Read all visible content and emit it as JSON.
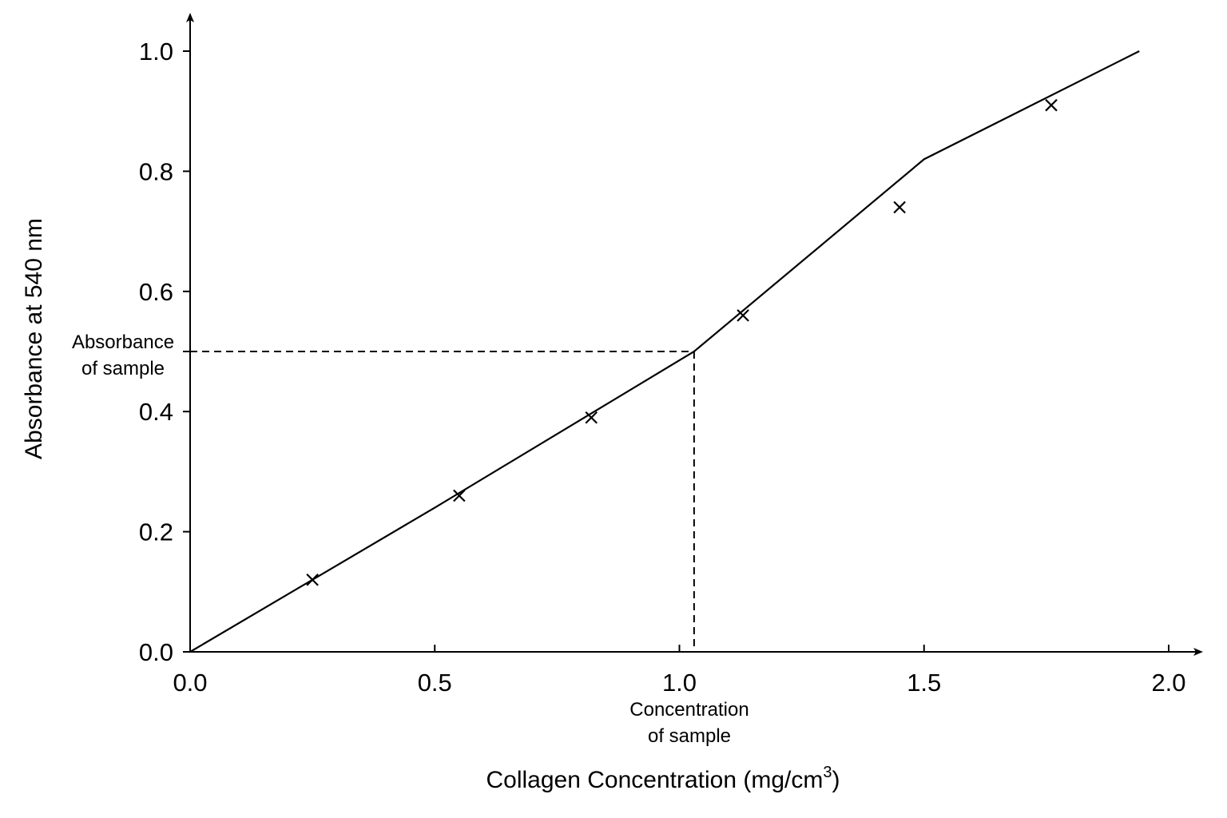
{
  "chart_data": {
    "type": "line",
    "title": "",
    "xlabel": "Collagen Concentration (mg/cm",
    "xlabel_superscript": "3",
    "xlabel_suffix": ")",
    "ylabel": "Absorbance at 540 nm",
    "xlim": [
      0,
      2.0
    ],
    "ylim": [
      0,
      1.0
    ],
    "x_ticks": [
      0.0,
      0.5,
      1.0,
      1.5,
      2.0
    ],
    "x_tick_labels": [
      "0.0",
      "0.5",
      "1.0",
      "1.5",
      "2.0"
    ],
    "y_ticks": [
      0.0,
      0.2,
      0.4,
      0.6,
      0.8,
      1.0
    ],
    "y_tick_labels": [
      "0.0",
      "0.2",
      "0.4",
      "0.6",
      "0.8",
      "1.0"
    ],
    "grid": false,
    "legend": "none",
    "series": [
      {
        "marker": "x",
        "x": [
          0.25,
          0.55,
          0.82,
          1.13,
          1.45,
          1.76
        ],
        "y": [
          0.12,
          0.26,
          0.39,
          0.56,
          0.74,
          0.91
        ]
      }
    ],
    "fit_line": {
      "x": [
        0,
        0.5,
        1.03,
        1.5,
        1.94
      ],
      "y": [
        0,
        0.24,
        0.5,
        0.82,
        1.0
      ]
    },
    "sample": {
      "absorbance": 0.5,
      "concentration": 1.03,
      "absorbance_label": [
        "Absorbance",
        "of sample"
      ],
      "concentration_label": [
        "Concentration",
        "of sample"
      ]
    }
  }
}
